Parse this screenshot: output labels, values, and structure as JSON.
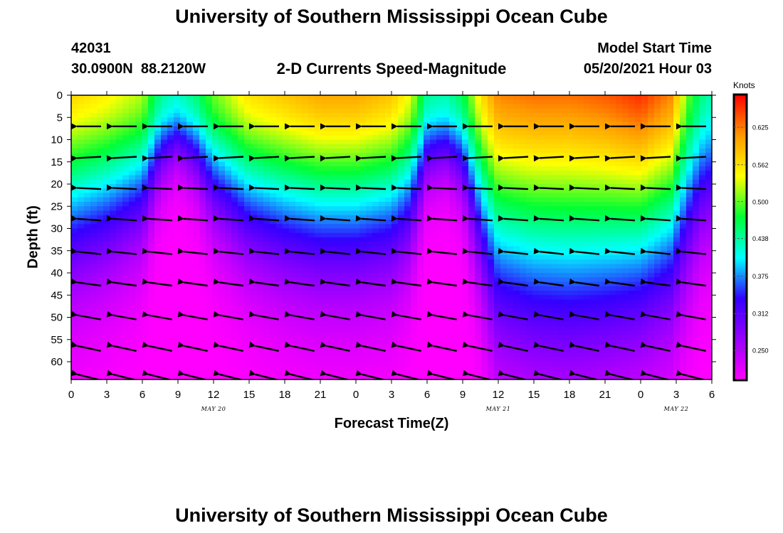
{
  "header": {
    "title_top": "University of Southern Mississippi Ocean Cube",
    "title_bottom": "University of Southern Mississippi Ocean Cube",
    "station_id": "42031",
    "station_coords": "30.0900N  88.2120W",
    "plot_subtitle": "2-D Currents Speed-Magnitude",
    "model_start_label": "Model Start Time",
    "model_start_value": "05/20/2021 Hour 03"
  },
  "chart_data": {
    "type": "heatmap",
    "title": "2-D Currents Speed-Magnitude",
    "xlabel": "Forecast Time(Z)",
    "ylabel": "Depth (ft)",
    "x_ticks": [
      "0",
      "3",
      "6",
      "9",
      "12",
      "15",
      "18",
      "21",
      "0",
      "3",
      "6",
      "9",
      "12",
      "15",
      "18",
      "21",
      "0",
      "3",
      "6"
    ],
    "x_range_hours": [
      0,
      54
    ],
    "date_labels": [
      {
        "label": "MAY 20",
        "hour": 12
      },
      {
        "label": "MAY 21",
        "hour": 36
      },
      {
        "label": "MAY 22",
        "hour": 51
      }
    ],
    "y_ticks": [
      "0",
      "5",
      "10",
      "15",
      "20",
      "25",
      "30",
      "35",
      "40",
      "45",
      "50",
      "55",
      "60"
    ],
    "y_range_ft": [
      0,
      64
    ],
    "colorbar": {
      "unit": "Knots",
      "ticks": [
        "0.625",
        "0.562",
        "0.500",
        "0.438",
        "0.375",
        "0.312",
        "0.250"
      ],
      "range": [
        0.2,
        0.68
      ],
      "colors": [
        "#ff00ff",
        "#9900ff",
        "#3300ff",
        "#00ffff",
        "#00ff33",
        "#ffff00",
        "#ff9900",
        "#ff0000"
      ]
    },
    "vector_depths_ft": [
      7,
      14,
      21,
      28,
      35.5,
      42.5,
      50,
      57,
      63.5
    ],
    "vector_hours": [
      1.5,
      4.5,
      7.5,
      10.5,
      13.5,
      16.5,
      19.5,
      22.5,
      25.5,
      28.5,
      31.5,
      34.5,
      37.5,
      40.5,
      43.5,
      46.5,
      49.5,
      52.5
    ],
    "vector_direction_deg_by_depth": [
      0,
      -3,
      3,
      4,
      6,
      8,
      10,
      12,
      14
    ],
    "speed_profile_hours": [
      0,
      3,
      6,
      7.5,
      9,
      10.5,
      12,
      15,
      18,
      21,
      24,
      27,
      28.5,
      30,
      31.5,
      33,
      34.5,
      36,
      39,
      42,
      45,
      48,
      50.5,
      52,
      53,
      54
    ],
    "speed_surface_knots": [
      0.57,
      0.55,
      0.52,
      0.44,
      0.42,
      0.45,
      0.5,
      0.56,
      0.58,
      0.6,
      0.6,
      0.58,
      0.54,
      0.44,
      0.43,
      0.46,
      0.56,
      0.62,
      0.63,
      0.63,
      0.64,
      0.66,
      0.62,
      0.5,
      0.45,
      0.43
    ],
    "speed_decay_scale_ft": [
      40,
      36,
      30,
      18,
      14,
      18,
      26,
      34,
      38,
      40,
      40,
      38,
      33,
      18,
      16,
      20,
      38,
      58,
      64,
      66,
      62,
      56,
      50,
      40,
      32,
      30
    ]
  }
}
